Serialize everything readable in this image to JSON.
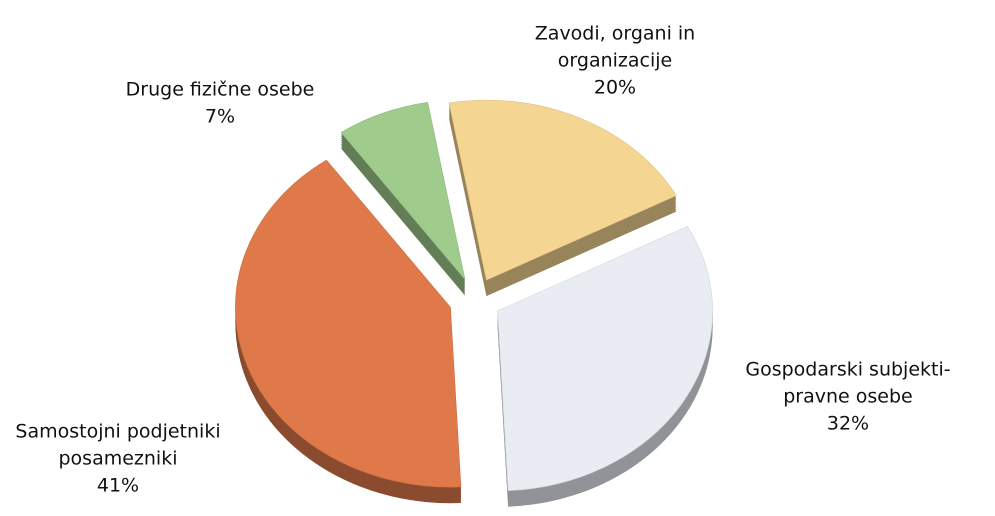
{
  "chart_data": {
    "type": "pie",
    "categories": [
      [
        "Zavodi, organi in",
        "organizacije"
      ],
      [
        "Gospodarski subjekti-",
        "pravne osebe"
      ],
      [
        "Samostojni podjetniki",
        "posamezniki"
      ],
      [
        "Druge fizične osebe"
      ]
    ],
    "values": [
      20,
      32,
      41,
      7
    ],
    "value_labels": [
      "20%",
      "32%",
      "41%",
      "7%"
    ],
    "colors": [
      "#f5d592",
      "#e9edf3",
      "#e0794a",
      "#9fcc8c"
    ]
  }
}
